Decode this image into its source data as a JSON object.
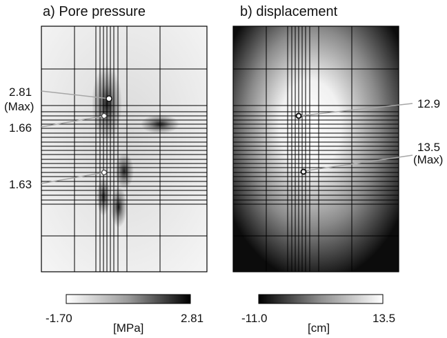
{
  "panels": {
    "a": {
      "title": "a) Pore pressure",
      "points": [
        {
          "value": "2.81",
          "note": "(Max)"
        },
        {
          "value": "1.66"
        },
        {
          "value": "1.63"
        }
      ],
      "colorbar": {
        "min": "-1.70",
        "max": "2.81",
        "unit": "[MPa]",
        "low_color": "#ffffff",
        "high_color": "#000000"
      }
    },
    "b": {
      "title": "b) displacement",
      "points": [
        {
          "value": "12.9"
        },
        {
          "value": "13.5",
          "note": "(Max)"
        }
      ],
      "colorbar": {
        "min": "-11.0",
        "max": "13.5",
        "unit": "[cm]",
        "low_color": "#000000",
        "high_color": "#ffffff"
      }
    }
  },
  "colors": {
    "grid": "#000000",
    "leader": "#a6a6a6"
  }
}
